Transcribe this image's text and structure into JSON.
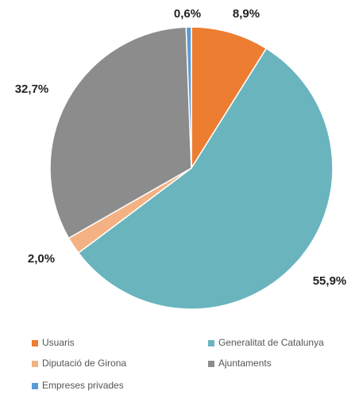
{
  "chart_data": {
    "type": "pie",
    "categories": [
      "Usuaris",
      "Generalitat de Catalunya",
      "Diputació de Girona",
      "Ajuntaments",
      "Empreses privades"
    ],
    "values": [
      8.9,
      55.9,
      2.0,
      32.7,
      0.6
    ],
    "value_labels": [
      "8,9%",
      "55,9%",
      "2,0%",
      "32,7%",
      "0,6%"
    ],
    "colors": [
      "#ed7d31",
      "#6ab4be",
      "#f4b183",
      "#8c8c8c",
      "#5b9bd5"
    ],
    "legend": "bottom"
  }
}
